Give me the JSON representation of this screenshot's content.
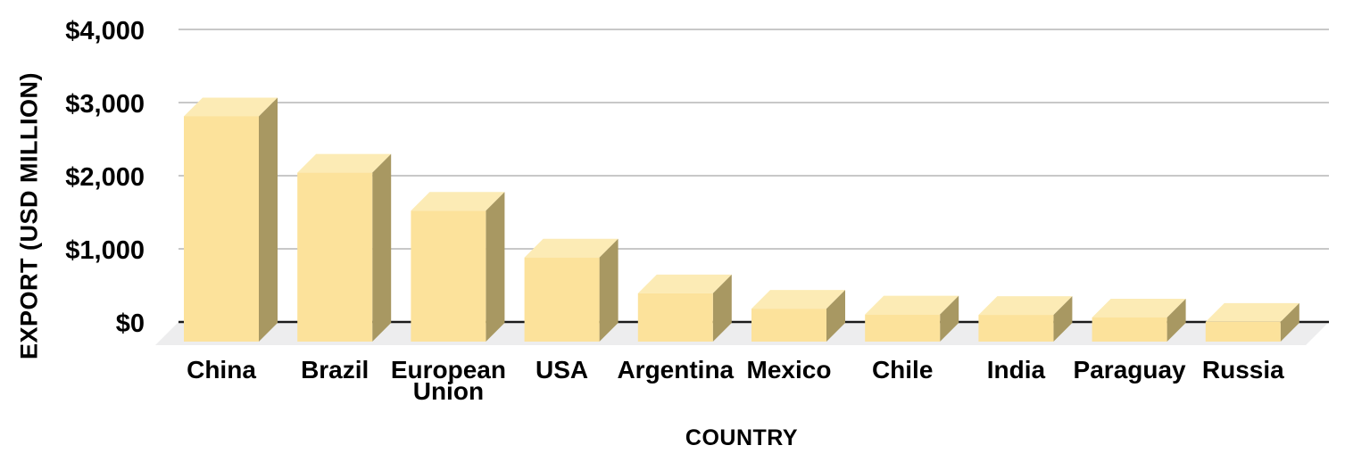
{
  "chart_data": {
    "type": "bar",
    "variant": "3d-column",
    "title": "",
    "xlabel": "COUNTRY",
    "ylabel": "EXPORT (USD MILLION)",
    "categories": [
      "China",
      "Brazil",
      "European Union",
      "USA",
      "Argentina",
      "Mexico",
      "Chile",
      "India",
      "Paraguay",
      "Russia"
    ],
    "values": [
      3080,
      2310,
      1790,
      1150,
      660,
      450,
      370,
      365,
      330,
      270
    ],
    "ylim": [
      0,
      4000
    ],
    "ytick_step": 1000,
    "ytick_labels": [
      "$0",
      "$1,000",
      "$2,000",
      "$3,000",
      "$4,000"
    ],
    "grid": true,
    "legend": false
  },
  "colors": {
    "background": "#FFFFFF",
    "bar_front": "#FCE29B",
    "bar_top": "#FCEBB5",
    "bar_side": "#A89862",
    "gridline": "#C8C8C8",
    "axis_line": "#1A1A1A",
    "floor": "#EDEDEE",
    "text": "#000000"
  }
}
